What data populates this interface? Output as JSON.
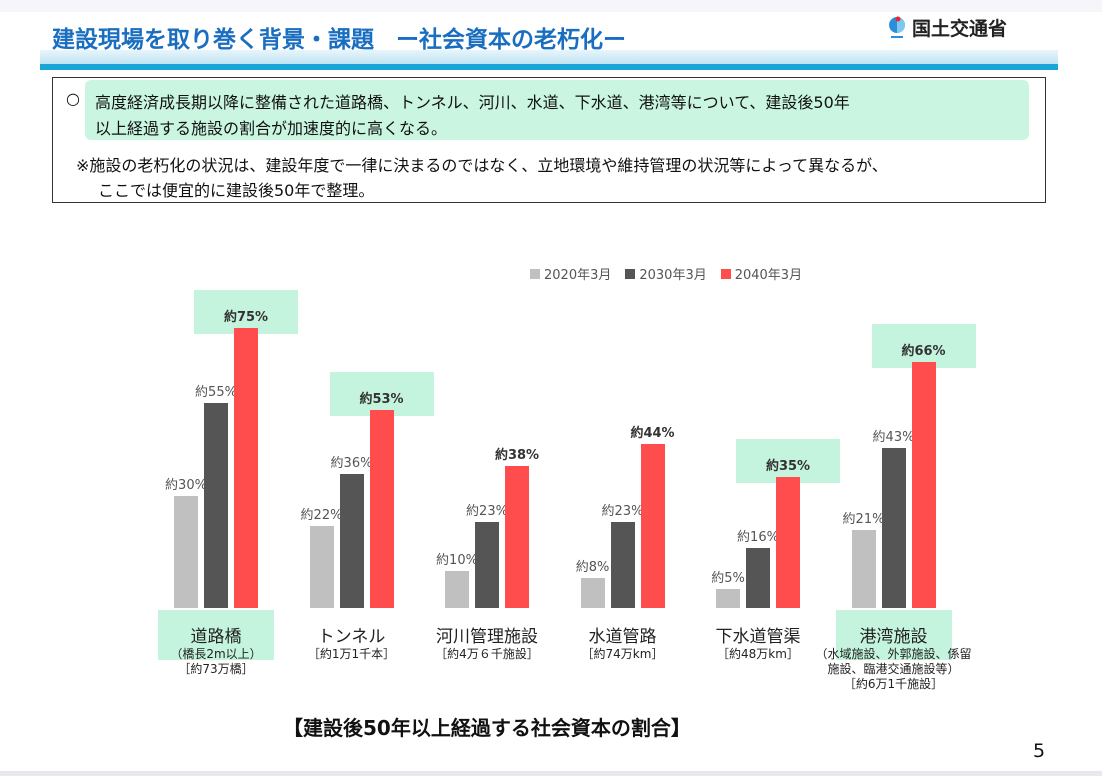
{
  "header": {
    "title": "建設現場を取り巻く背景・課題",
    "subtitle": "ー社会資本の老朽化ー",
    "org": "国土交通省"
  },
  "summary": {
    "bullet": "○",
    "line1": "高度経済成長期以降に整備された道路橋、トンネル、河川、水道、下水道、港湾等について、建設後50年",
    "line2": "以上経過する施設の割合が加速度的に高くなる。",
    "note1": "※施設の老朽化の状況は、建設年度で一律に決まるのではなく、立地環境や維持管理の状況等によって異なるが、",
    "note2": "ここでは便宜的に建設後50年で整理。"
  },
  "chart_data": {
    "type": "bar",
    "title": "【建設後50年以上経過する社会資本の割合】",
    "ylabel": "",
    "xlabel": "",
    "ylim": [
      0,
      80
    ],
    "grid": false,
    "legend": "top-right",
    "categories": [
      "道路橋",
      "トンネル",
      "河川管理施設",
      "水道管路",
      "下水道管渠",
      "港湾施設"
    ],
    "category_details": [
      [
        "（橋長2m以上）",
        "［約73万橋］"
      ],
      [
        "［約1万1千本］"
      ],
      [
        "［約4万６千施設］"
      ],
      [
        "［約74万km］"
      ],
      [
        "［約48万km］"
      ],
      [
        "（水域施設、外郭施設、係留",
        "施設、臨港交通施設等）",
        "［約6万1千施設］"
      ]
    ],
    "series": [
      {
        "name": "2020年3月",
        "color": "#c0c0c0",
        "values": [
          30,
          22,
          10,
          8,
          5,
          21
        ],
        "labels": [
          "約30%",
          "約22%",
          "約10%",
          "約8%",
          "約5%",
          "約21%"
        ]
      },
      {
        "name": "2030年3月",
        "color": "#555555",
        "values": [
          55,
          36,
          23,
          23,
          16,
          43
        ],
        "labels": [
          "約55%",
          "約36%",
          "約23%",
          "約23%",
          "約16%",
          "約43%"
        ]
      },
      {
        "name": "2040年3月",
        "color": "#ff4d4d",
        "values": [
          75,
          53,
          38,
          44,
          35,
          66
        ],
        "labels": [
          "約75%",
          "約53%",
          "約38%",
          "約44%",
          "約35%",
          "約66%"
        ]
      }
    ],
    "highlighted_labels": [
      "約75%",
      "約53%",
      "約35%",
      "約66%"
    ],
    "highlighted_categories": [
      "道路橋",
      "港湾施設"
    ]
  },
  "page_number": "5"
}
